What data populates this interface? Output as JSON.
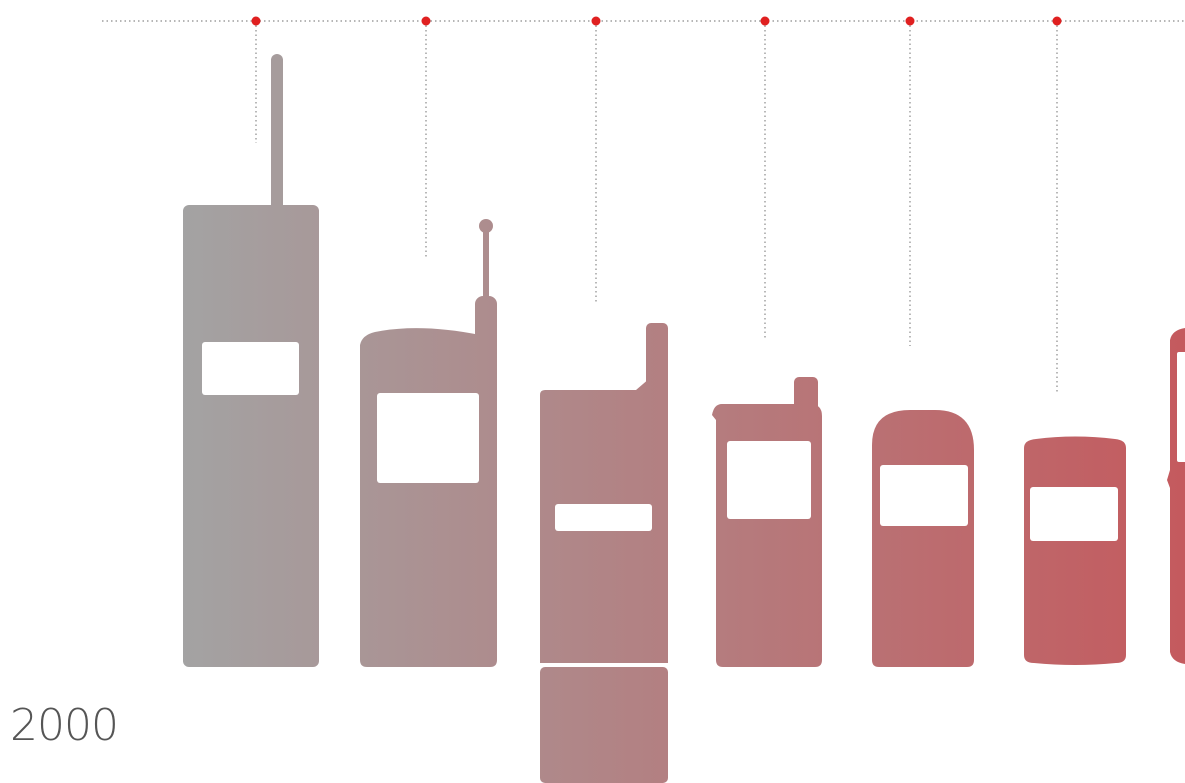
{
  "timeline": {
    "year_label": "2000",
    "marker_color": "#e02020",
    "line_color": "#8a8a8a"
  },
  "phones": {
    "count_shown": 7,
    "gradient_start_color": "#a3a3a3",
    "gradient_end_color": "#c45a5e",
    "screen_color": "#ffffff",
    "items": [
      {
        "name": "brick-phone"
      },
      {
        "name": "bag-phone"
      },
      {
        "name": "flip-phone"
      },
      {
        "name": "stub-antenna-phone"
      },
      {
        "name": "rounded-candybar-phone"
      },
      {
        "name": "compact-candybar-phone"
      },
      {
        "name": "cropped-phone"
      }
    ]
  }
}
